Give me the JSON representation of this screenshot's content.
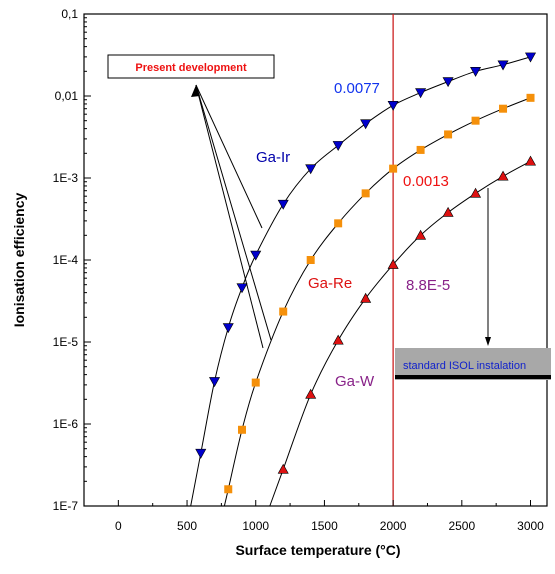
{
  "chart_data": {
    "type": "scatter",
    "xlabel": "Surface temperature (°C)",
    "ylabel": "Ionisation efficiency",
    "x_ticks": [
      "0",
      "500",
      "1000",
      "1500",
      "2000",
      "2500",
      "3000"
    ],
    "y_ticks": [
      "1E-7",
      "1E-6",
      "1E-5",
      "1E-4",
      "1E-3",
      "0,01",
      "0,1"
    ],
    "xlim": [
      -250,
      3120
    ],
    "ylim": [
      1e-07,
      0.1
    ],
    "y_scale": "log",
    "grid": false,
    "series": [
      {
        "name": "Ga-Ir",
        "marker": "triangle-down",
        "color": "#0000cc",
        "x": [
          600,
          700,
          800,
          900,
          1000,
          1200,
          1400,
          1600,
          1800,
          2000,
          2200,
          2400,
          2600,
          2800,
          3000
        ],
        "y": [
          4.4e-07,
          3.3e-06,
          1.5e-05,
          4.6e-05,
          0.000115,
          0.00048,
          0.0013,
          0.0025,
          0.0046,
          0.0077,
          0.011,
          0.015,
          0.02,
          0.024,
          0.03
        ]
      },
      {
        "name": "Ga-Re",
        "marker": "square",
        "color": "#f5900a",
        "x": [
          800,
          900,
          1000,
          1200,
          1400,
          1600,
          1800,
          2000,
          2200,
          2400,
          2600,
          2800,
          3000
        ],
        "y": [
          1.6e-07,
          8.5e-07,
          3.2e-06,
          2.35e-05,
          0.0001,
          0.00028,
          0.00065,
          0.0013,
          0.0022,
          0.0034,
          0.005,
          0.007,
          0.0095
        ]
      },
      {
        "name": "Ga-W",
        "marker": "triangle-up",
        "color": "#dd1111",
        "x": [
          1200,
          1400,
          1600,
          1800,
          2000,
          2200,
          2400,
          2600,
          2800,
          3000
        ],
        "y": [
          2.8e-07,
          2.3e-06,
          1.05e-05,
          3.4e-05,
          8.8e-05,
          0.0002,
          0.00038,
          0.00065,
          0.00105,
          0.0016
        ]
      }
    ],
    "vline": {
      "x": 2000,
      "color": "#cc2222"
    },
    "annotations": {
      "present_development": "Present development",
      "val_ir": "0.0077",
      "val_re": "0.0013",
      "val_w": "8.8E-5",
      "isol": "standard ISOL instalation"
    },
    "annotation_colors": {
      "present_development": "#ee1111",
      "val_ir": "#1133ee",
      "val_re": "#ee1111",
      "val_w": "#882288",
      "label_ir": "#0000aa",
      "label_re": "#dd1111",
      "label_w": "#882288",
      "isol_text": "#1122cc",
      "isol_band": "#a8a8a8"
    }
  }
}
